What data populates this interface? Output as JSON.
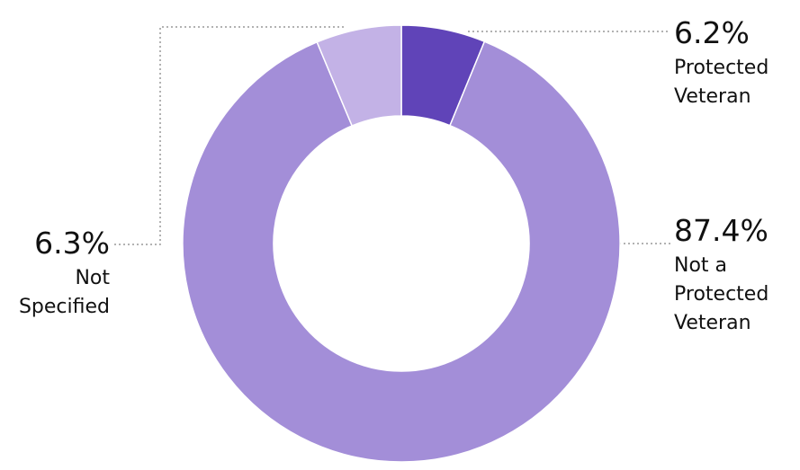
{
  "chart_data": {
    "type": "donut",
    "categories": [
      "Protected Veteran",
      "Not a Protected Veteran",
      "Not Specified"
    ],
    "values": [
      6.2,
      87.4,
      6.3
    ],
    "value_labels": [
      "6.2%",
      "87.4%",
      "6.3%"
    ],
    "colors": [
      "#6044b8",
      "#a38ed8",
      "#c3b2e6"
    ]
  }
}
